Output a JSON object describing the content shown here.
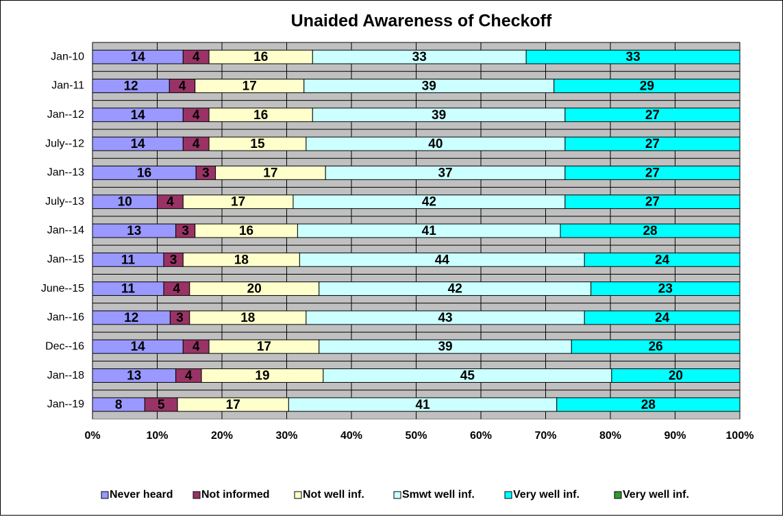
{
  "chart_data": {
    "type": "bar",
    "orientation": "horizontal",
    "stacking": "percent",
    "title": "Unaided Awareness of Checkoff",
    "categories": [
      "Jan-10",
      "Jan-11",
      "Jan--12",
      "July--12",
      "Jan--13",
      "July--13",
      "Jan--14",
      "Jan--15",
      "June--15",
      "Jan--16",
      "Dec--16",
      "Jan--18",
      "Jan--19"
    ],
    "series": [
      {
        "name": "Never heard",
        "color": "#9999ff",
        "values": [
          14,
          12,
          14,
          14,
          16,
          10,
          13,
          11,
          11,
          12,
          14,
          13,
          8
        ]
      },
      {
        "name": "Not informed",
        "color": "#993366",
        "values": [
          4,
          4,
          4,
          4,
          3,
          4,
          3,
          3,
          4,
          3,
          4,
          4,
          5
        ]
      },
      {
        "name": "Not well inf.",
        "color": "#ffffcc",
        "values": [
          16,
          17,
          16,
          15,
          17,
          17,
          16,
          18,
          20,
          18,
          17,
          19,
          17
        ]
      },
      {
        "name": "Smwt well inf.",
        "color": "#ccffff",
        "values": [
          33,
          39,
          39,
          40,
          37,
          42,
          41,
          44,
          42,
          43,
          39,
          45,
          41
        ]
      },
      {
        "name": "Very well inf.",
        "color": "#00ffff",
        "values": [
          33,
          29,
          27,
          27,
          27,
          27,
          28,
          24,
          23,
          24,
          26,
          20,
          28
        ]
      },
      {
        "name": "Very well inf.",
        "color": "#339933",
        "values": [
          null,
          null,
          null,
          null,
          null,
          null,
          null,
          null,
          null,
          null,
          null,
          null,
          null
        ]
      }
    ],
    "xlim": [
      0,
      100
    ],
    "xticks": [
      {
        "value": 0,
        "label": "0%"
      },
      {
        "value": 10,
        "label": "10%"
      },
      {
        "value": 20,
        "label": "20%"
      },
      {
        "value": 30,
        "label": "30%"
      },
      {
        "value": 40,
        "label": "40%"
      },
      {
        "value": 50,
        "label": "50%"
      },
      {
        "value": 60,
        "label": "60%"
      },
      {
        "value": 70,
        "label": "70%"
      },
      {
        "value": 80,
        "label": "80%"
      },
      {
        "value": 90,
        "label": "90%"
      },
      {
        "value": 100,
        "label": "100%"
      }
    ],
    "grid": true,
    "plot_background": "#c0c0c0",
    "legend": "bottom"
  }
}
